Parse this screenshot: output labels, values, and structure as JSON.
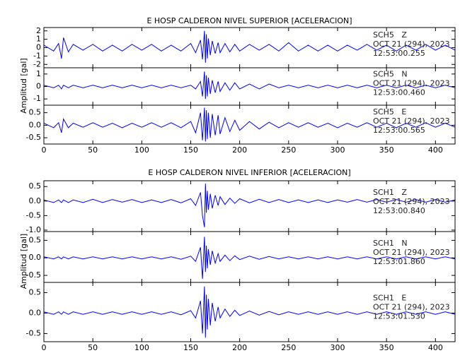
{
  "chart_data": [
    {
      "type": "line",
      "title": "E HOSP CALDERON NIVEL SUPERIOR [ACELERACION]",
      "y_label": "Amplitud [gal]",
      "color": "#0000ff",
      "xlim": [
        0,
        420
      ],
      "xticks": [
        0,
        50,
        100,
        150,
        200,
        250,
        300,
        350,
        400
      ],
      "x": [
        0,
        10,
        15,
        18,
        20,
        25,
        30,
        40,
        50,
        60,
        70,
        80,
        90,
        100,
        110,
        120,
        130,
        140,
        150,
        155,
        160,
        162,
        164,
        165,
        166,
        167,
        168,
        170,
        172,
        175,
        178,
        180,
        185,
        190,
        195,
        200,
        210,
        220,
        230,
        240,
        250,
        260,
        270,
        280,
        290,
        300,
        310,
        320,
        330,
        340,
        350,
        360,
        370,
        380,
        390,
        400,
        410,
        420
      ],
      "series": [
        {
          "name": "SCH5   Z",
          "date": "OCT 21 (294), 2023",
          "time": "12:53:00.255",
          "ylim": [
            -2.4,
            2.4
          ],
          "yticks": [
            -2,
            -1,
            0,
            1,
            2
          ],
          "values": [
            0.3,
            -0.4,
            0.5,
            -1.3,
            1.2,
            -0.5,
            0.4,
            -0.3,
            0.4,
            -0.4,
            0.3,
            -0.4,
            0.4,
            -0.3,
            0.4,
            -0.4,
            0.3,
            -0.4,
            0.5,
            -0.6,
            0.9,
            -1.4,
            2.0,
            -1.8,
            1.6,
            -1.3,
            1.1,
            -0.9,
            0.8,
            -0.7,
            0.6,
            -0.6,
            0.5,
            -0.5,
            0.4,
            -0.4,
            0.4,
            -0.3,
            0.4,
            -0.4,
            0.6,
            -0.4,
            0.3,
            -0.4,
            0.3,
            -0.4,
            0.3,
            -0.3,
            0.4,
            -0.3,
            0.3,
            -0.4,
            0.3,
            -0.3,
            0.4,
            -0.3,
            0.3,
            -0.3
          ]
        },
        {
          "name": "SCH5   N",
          "date": "OCT 21 (294), 2023",
          "time": "12:53:00.460",
          "ylim": [
            -1.5,
            1.5
          ],
          "yticks": [
            -1,
            0,
            1
          ],
          "values": [
            0.1,
            -0.1,
            0.1,
            -0.2,
            0.1,
            -0.1,
            0.1,
            -0.1,
            0.1,
            -0.1,
            0.1,
            -0.1,
            0.1,
            -0.1,
            0.1,
            -0.1,
            0.1,
            -0.1,
            0.1,
            -0.2,
            0.4,
            -0.8,
            1.2,
            -1.0,
            0.9,
            -0.8,
            0.7,
            -0.6,
            0.5,
            -0.5,
            0.4,
            -0.4,
            0.3,
            -0.3,
            0.3,
            -0.2,
            0.2,
            -0.2,
            0.2,
            -0.1,
            0.1,
            -0.1,
            0.1,
            -0.1,
            0.1,
            -0.1,
            0.1,
            -0.1,
            0.1,
            -0.1,
            0.1,
            -0.1,
            0.1,
            -0.1,
            0.1,
            -0.1,
            0.1,
            -0.1
          ]
        },
        {
          "name": "SCH5   E",
          "date": "OCT 21 (294), 2023",
          "time": "12:53:00.565",
          "ylim": [
            -0.75,
            0.8
          ],
          "yticks": [
            -0.5,
            {
              "value": 0,
              "label": "0.0"
            },
            0.5
          ],
          "values": [
            0.08,
            -0.1,
            0.1,
            -0.3,
            0.25,
            -0.1,
            0.08,
            -0.08,
            0.1,
            -0.08,
            0.08,
            -0.1,
            0.08,
            -0.08,
            0.1,
            -0.08,
            0.1,
            -0.1,
            0.15,
            -0.3,
            0.5,
            -0.6,
            0.7,
            -0.65,
            0.6,
            -0.55,
            0.5,
            -0.5,
            0.45,
            -0.4,
            0.4,
            -0.35,
            0.3,
            -0.25,
            0.2,
            -0.2,
            0.15,
            -0.15,
            0.12,
            -0.1,
            0.1,
            -0.08,
            0.1,
            -0.08,
            0.08,
            -0.1,
            0.08,
            -0.08,
            0.1,
            -0.08,
            0.08,
            -0.1,
            0.08,
            -0.08,
            0.1,
            -0.08,
            0.08,
            -0.08
          ]
        }
      ]
    },
    {
      "type": "line",
      "title": "E HOSP CALDERON NIVEL INFERIOR [ACELERACION]",
      "y_label": "Amplitud [gal]",
      "color": "#0000ff",
      "xlim": [
        0,
        420
      ],
      "xticks": [
        0,
        50,
        100,
        150,
        200,
        250,
        300,
        350,
        400
      ],
      "x": [
        0,
        10,
        15,
        18,
        20,
        25,
        30,
        40,
        50,
        60,
        70,
        80,
        90,
        100,
        110,
        120,
        130,
        140,
        150,
        155,
        160,
        162,
        164,
        165,
        166,
        167,
        168,
        170,
        172,
        175,
        178,
        180,
        185,
        190,
        195,
        200,
        210,
        220,
        230,
        240,
        250,
        260,
        270,
        280,
        290,
        300,
        310,
        320,
        330,
        340,
        350,
        360,
        370,
        380,
        390,
        400,
        410,
        420
      ],
      "series": [
        {
          "name": "SCH1   Z",
          "date": "OCT 21 (294), 2023",
          "time": "12:53:00.840",
          "ylim": [
            -1.05,
            0.7
          ],
          "yticks": [
            {
              "value": -1,
              "label": "-1.0"
            },
            -0.5,
            {
              "value": 0,
              "label": "0.0"
            },
            0.5
          ],
          "values": [
            0.04,
            -0.05,
            0.04,
            -0.05,
            0.04,
            -0.05,
            0.04,
            -0.05,
            0.06,
            -0.05,
            0.05,
            -0.04,
            0.05,
            -0.05,
            0.04,
            -0.05,
            0.05,
            -0.06,
            0.08,
            -0.15,
            0.3,
            -0.5,
            -0.9,
            0.6,
            -0.4,
            0.35,
            -0.3,
            0.25,
            -0.25,
            0.2,
            -0.15,
            0.15,
            -0.12,
            0.1,
            -0.08,
            0.08,
            -0.06,
            0.06,
            -0.05,
            0.05,
            -0.05,
            0.04,
            -0.05,
            0.04,
            -0.05,
            0.04,
            -0.04,
            0.05,
            -0.04,
            0.05,
            -0.04,
            0.05,
            -0.04,
            0.05,
            -0.04,
            0.05,
            -0.04,
            0.04
          ]
        },
        {
          "name": "SCH1   N",
          "date": "OCT 21 (294), 2023",
          "time": "12:53:01.860",
          "ylim": [
            -0.7,
            0.75
          ],
          "yticks": [
            -0.5,
            {
              "value": 0,
              "label": "0.0"
            },
            0.5
          ],
          "values": [
            0.03,
            -0.03,
            0.03,
            -0.03,
            0.03,
            -0.03,
            0.03,
            -0.03,
            0.03,
            -0.03,
            0.03,
            -0.03,
            0.03,
            -0.03,
            0.03,
            -0.03,
            0.03,
            -0.04,
            0.05,
            -0.1,
            0.3,
            -0.6,
            0.6,
            -0.4,
            0.35,
            -0.3,
            0.25,
            -0.2,
            0.2,
            -0.15,
            0.12,
            -0.1,
            0.08,
            -0.08,
            0.06,
            -0.05,
            0.05,
            -0.04,
            0.04,
            -0.03,
            0.03,
            -0.03,
            0.03,
            -0.03,
            0.03,
            -0.03,
            0.03,
            -0.03,
            0.03,
            -0.03,
            0.03,
            -0.03,
            0.03,
            -0.03,
            0.03,
            -0.03,
            0.03,
            -0.03
          ]
        },
        {
          "name": "SCH1   E",
          "date": "OCT 21 (294), 2023",
          "time": "12:53:01.530",
          "ylim": [
            -0.7,
            0.75
          ],
          "yticks": [
            -0.5,
            {
              "value": 0,
              "label": "0.0"
            },
            0.5
          ],
          "values": [
            0.03,
            -0.03,
            0.03,
            -0.03,
            0.03,
            -0.03,
            0.03,
            -0.03,
            0.03,
            -0.03,
            0.03,
            -0.03,
            0.03,
            -0.03,
            0.03,
            -0.03,
            0.03,
            -0.04,
            0.06,
            -0.12,
            0.3,
            -0.5,
            0.65,
            -0.6,
            0.45,
            -0.4,
            0.35,
            -0.3,
            0.25,
            -0.2,
            0.15,
            -0.12,
            0.1,
            -0.08,
            0.07,
            -0.06,
            0.05,
            -0.05,
            0.04,
            -0.04,
            0.03,
            -0.03,
            0.03,
            -0.03,
            0.03,
            -0.03,
            0.03,
            -0.03,
            0.03,
            -0.03,
            0.03,
            -0.03,
            0.03,
            -0.03,
            0.03,
            -0.03,
            0.03,
            -0.03
          ]
        }
      ]
    }
  ]
}
